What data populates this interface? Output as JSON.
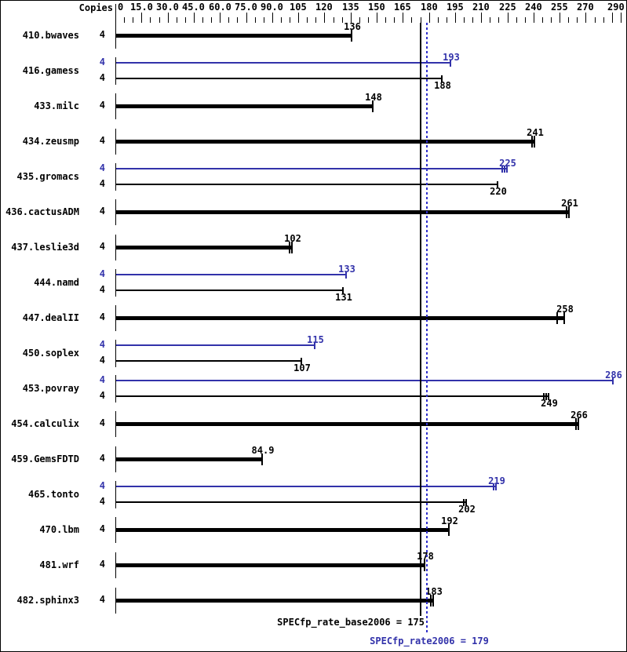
{
  "header": {
    "copies_label": "Copies"
  },
  "axis": {
    "min": 0,
    "max": 290,
    "minor_step": 5,
    "major_step": 15,
    "labels": [
      {
        "value": 0,
        "text": "0"
      },
      {
        "value": 15,
        "text": "15.0"
      },
      {
        "value": 30,
        "text": "30.0"
      },
      {
        "value": 45,
        "text": "45.0"
      },
      {
        "value": 60,
        "text": "60.0"
      },
      {
        "value": 75,
        "text": "75.0"
      },
      {
        "value": 90,
        "text": "90.0"
      },
      {
        "value": 105,
        "text": "105"
      },
      {
        "value": 120,
        "text": "120"
      },
      {
        "value": 135,
        "text": "135"
      },
      {
        "value": 150,
        "text": "150"
      },
      {
        "value": 165,
        "text": "165"
      },
      {
        "value": 180,
        "text": "180"
      },
      {
        "value": 195,
        "text": "195"
      },
      {
        "value": 210,
        "text": "210"
      },
      {
        "value": 225,
        "text": "225"
      },
      {
        "value": 240,
        "text": "240"
      },
      {
        "value": 255,
        "text": "255"
      },
      {
        "value": 270,
        "text": "270"
      },
      {
        "value": 290,
        "text": "290"
      }
    ]
  },
  "chart_data": {
    "type": "bar",
    "orientation": "horizontal",
    "xlim": [
      0,
      290
    ],
    "grid": false,
    "legend_position": "none",
    "colors": {
      "base": "#000000",
      "peak": "#3232aa",
      "peak_line": "#3030cc"
    },
    "rows": [
      {
        "name": "410.bwaves",
        "bars": [
          {
            "series": "base",
            "copies": "4",
            "value": 136,
            "label": "136",
            "marks": [
              0
            ]
          }
        ]
      },
      {
        "name": "416.gamess",
        "bars": [
          {
            "series": "peak",
            "copies": "4",
            "value": 193,
            "label": "193",
            "marks": [
              0
            ]
          },
          {
            "series": "base",
            "copies": "4",
            "value": 188,
            "label": "188",
            "marks": [
              0
            ]
          }
        ]
      },
      {
        "name": "433.milc",
        "bars": [
          {
            "series": "base",
            "copies": "4",
            "value": 148,
            "label": "148",
            "marks": [
              0
            ]
          }
        ]
      },
      {
        "name": "434.zeusmp",
        "bars": [
          {
            "series": "base",
            "copies": "4",
            "value": 241,
            "label": "241",
            "marks": [
              -3,
              0
            ]
          }
        ]
      },
      {
        "name": "435.gromacs",
        "bars": [
          {
            "series": "peak",
            "copies": "4",
            "value": 225,
            "label": "225",
            "marks": [
              -6,
              -3,
              0
            ]
          },
          {
            "series": "base",
            "copies": "4",
            "value": 220,
            "label": "220",
            "marks": [
              0
            ]
          }
        ]
      },
      {
        "name": "436.cactusADM",
        "bars": [
          {
            "series": "base",
            "copies": "4",
            "value": 261,
            "label": "261",
            "marks": [
              -3,
              0
            ]
          }
        ]
      },
      {
        "name": "437.leslie3d",
        "bars": [
          {
            "series": "base",
            "copies": "4",
            "value": 102,
            "label": "102",
            "marks": [
              -3,
              0
            ]
          }
        ]
      },
      {
        "name": "444.namd",
        "bars": [
          {
            "series": "peak",
            "copies": "4",
            "value": 133,
            "label": "133",
            "marks": [
              0
            ]
          },
          {
            "series": "base",
            "copies": "4",
            "value": 131,
            "label": "131",
            "marks": [
              0
            ]
          }
        ]
      },
      {
        "name": "447.dealII",
        "bars": [
          {
            "series": "base",
            "copies": "4",
            "value": 258,
            "label": "258",
            "marks": [
              -9,
              0
            ]
          }
        ]
      },
      {
        "name": "450.soplex",
        "bars": [
          {
            "series": "peak",
            "copies": "4",
            "value": 115,
            "label": "115",
            "marks": [
              0
            ]
          },
          {
            "series": "base",
            "copies": "4",
            "value": 107,
            "label": "107",
            "marks": [
              0
            ]
          }
        ]
      },
      {
        "name": "453.povray",
        "bars": [
          {
            "series": "peak",
            "copies": "4",
            "value": 286,
            "label": "286",
            "marks": [
              0
            ]
          },
          {
            "series": "base",
            "copies": "4",
            "value": 249,
            "label": "249",
            "marks": [
              -6,
              -3,
              0
            ]
          }
        ]
      },
      {
        "name": "454.calculix",
        "bars": [
          {
            "series": "base",
            "copies": "4",
            "value": 266,
            "label": "266",
            "marks": [
              -3,
              0
            ]
          }
        ]
      },
      {
        "name": "459.GemsFDTD",
        "bars": [
          {
            "series": "base",
            "copies": "4",
            "value": 84.9,
            "label": "84.9",
            "marks": [
              0
            ]
          }
        ]
      },
      {
        "name": "465.tonto",
        "bars": [
          {
            "series": "peak",
            "copies": "4",
            "value": 219,
            "label": "219",
            "marks": [
              -3,
              0
            ]
          },
          {
            "series": "base",
            "copies": "4",
            "value": 202,
            "label": "202",
            "marks": [
              -3,
              0
            ]
          }
        ]
      },
      {
        "name": "470.lbm",
        "bars": [
          {
            "series": "base",
            "copies": "4",
            "value": 192,
            "label": "192",
            "marks": [
              0
            ]
          }
        ]
      },
      {
        "name": "481.wrf",
        "bars": [
          {
            "series": "base",
            "copies": "4",
            "value": 178,
            "label": "178",
            "marks": [
              0
            ]
          }
        ]
      },
      {
        "name": "482.sphinx3",
        "bars": [
          {
            "series": "base",
            "copies": "4",
            "value": 183,
            "label": "183",
            "marks": [
              -3,
              0
            ]
          }
        ]
      }
    ],
    "reference_lines": [
      {
        "name": "base-mean",
        "value": 175,
        "style": "solid",
        "color": "#000000",
        "bottom": 784
      },
      {
        "name": "peak-mean",
        "value": 179,
        "style": "dotted",
        "color": "#3030cc",
        "bottom": 807
      }
    ]
  },
  "footer": {
    "base_label": "SPECfp_rate_base2006 = 175",
    "peak_label": "SPECfp_rate2006 = 179"
  }
}
